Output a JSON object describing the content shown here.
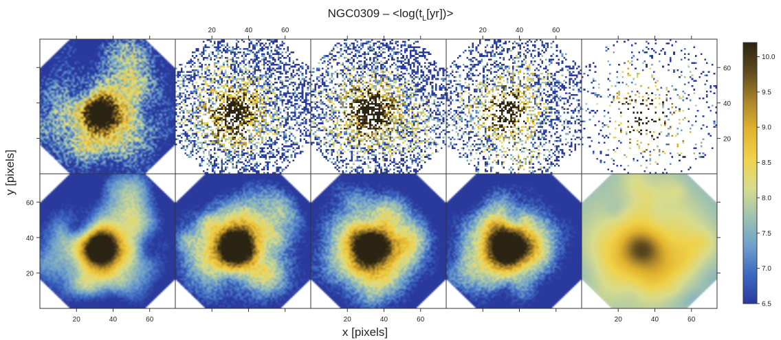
{
  "chart_data": {
    "type": "heatmap",
    "title_main": "NGC0309 – <log(t",
    "title_sub": "L",
    "title_end": "[yr])>",
    "xlabel": "x [pixels]",
    "ylabel": "y [pixels]",
    "xlim": [
      0,
      74
    ],
    "ylim": [
      0,
      76
    ],
    "x_ticks": [
      20,
      40,
      60
    ],
    "y_ticks": [
      20,
      40,
      60
    ],
    "grid": {
      "rows": 2,
      "cols": 5
    },
    "panel_density": [
      [
        1.0,
        0.6,
        0.6,
        0.45,
        0.12
      ],
      [
        1.0,
        1.0,
        1.0,
        1.0,
        1.0
      ]
    ],
    "panel_smoothing": [
      [
        0.55,
        0.0,
        0.0,
        0.0,
        0.0
      ],
      [
        0.9,
        0.82,
        0.82,
        0.82,
        1.0
      ]
    ],
    "galaxy_center": [
      33,
      34
    ],
    "colorbar": {
      "min": 6.5,
      "max": 10.2,
      "ticks": [
        "6.5",
        "7.0",
        "7.5",
        "8.0",
        "8.5",
        "9.0",
        "9.5",
        "10.0"
      ],
      "stops": [
        "#2a3a9c",
        "#3d68c2",
        "#6fa0cc",
        "#9fc2b0",
        "#d8dc8c",
        "#f0d24a",
        "#e2b32e",
        "#a8842a",
        "#5e4a1e",
        "#2b2412"
      ]
    }
  }
}
